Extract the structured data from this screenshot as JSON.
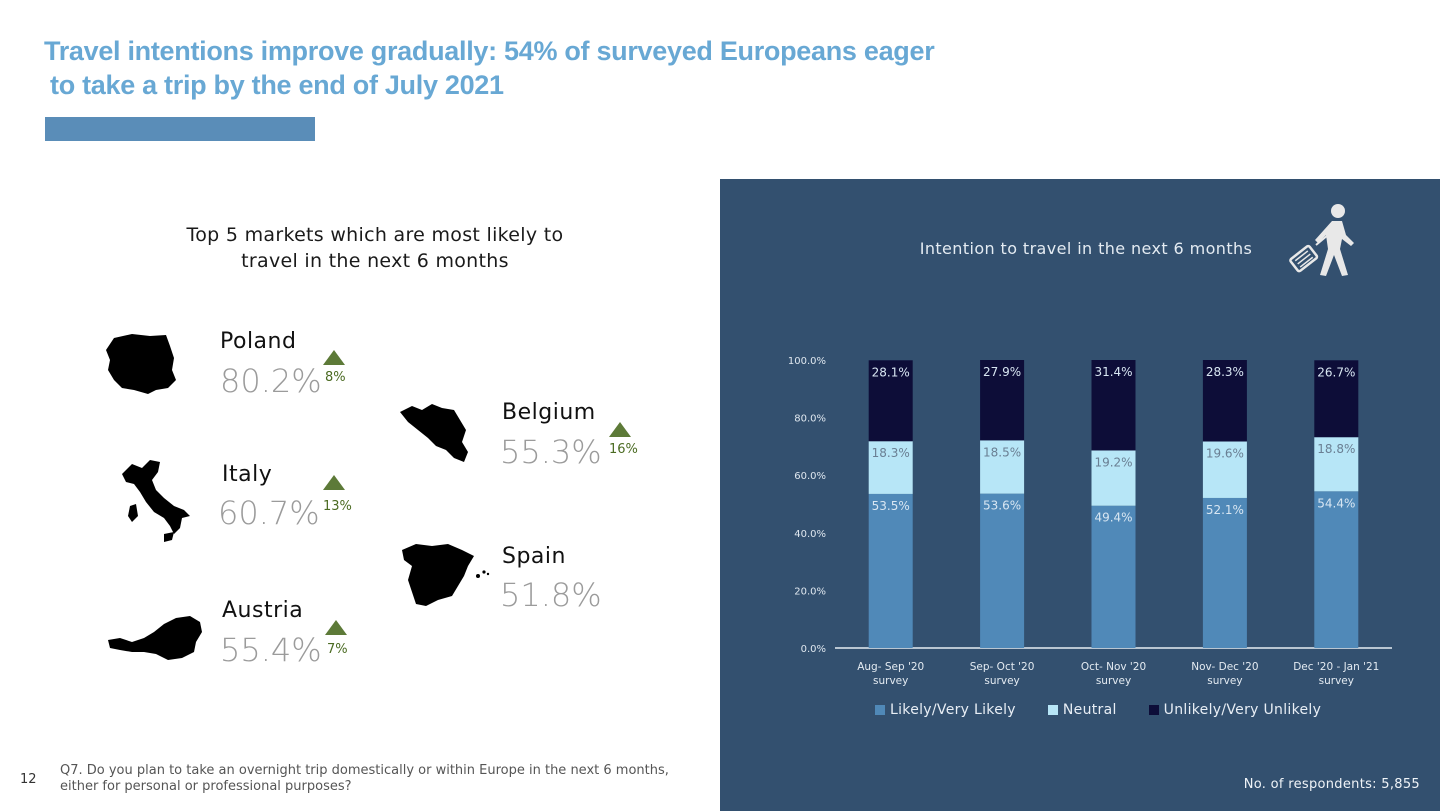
{
  "header": {
    "title_line1": "Travel intentions improve gradually: 54% of surveyed Europeans eager",
    "title_line2": "to take a trip by the end of July 2021",
    "title_color": "#68a8d4",
    "bar_color": "#5a8db8"
  },
  "markets": {
    "title": "Top 5 markets which are most likely to travel in the next 6 months",
    "items": [
      {
        "name": "Poland",
        "value": "80.2%",
        "change": "8%",
        "trend": "up"
      },
      {
        "name": "Italy",
        "value": "60.7%",
        "change": "13%",
        "trend": "up"
      },
      {
        "name": "Austria",
        "value": "55.4%",
        "change": "7%",
        "trend": "up"
      },
      {
        "name": "Belgium",
        "value": "55.3%",
        "change": "16%",
        "trend": "up"
      },
      {
        "name": "Spain",
        "value": "51.8%",
        "change": "",
        "trend": ""
      }
    ],
    "trend_color": "#5d7a38"
  },
  "footer": {
    "page_number": "12",
    "question": "Q7. Do you plan to take an overnight trip domestically or within Europe in the next 6 months, either for personal or professional purposes?",
    "respondents": "No. of respondents: 5,855"
  },
  "chart_data": {
    "type": "bar",
    "stacked": true,
    "title": "Intention to travel in the next 6 months",
    "categories": [
      [
        "Aug- Sep '20",
        "survey"
      ],
      [
        "Sep- Oct '20",
        "survey"
      ],
      [
        "Oct- Nov '20",
        "survey"
      ],
      [
        "Nov- Dec '20",
        "survey"
      ],
      [
        "Dec '20 - Jan '21",
        "survey"
      ]
    ],
    "series": [
      {
        "name": "Likely/Very Likely",
        "values": [
          53.5,
          53.6,
          49.4,
          52.1,
          54.4
        ],
        "labels": [
          "53.5%",
          "53.6%",
          "49.4%",
          "52.1%",
          "54.4%"
        ],
        "color": "#5089b8"
      },
      {
        "name": "Neutral",
        "values": [
          18.3,
          18.5,
          19.2,
          19.6,
          18.8
        ],
        "labels": [
          "18.3%",
          "18.5%",
          "19.2%",
          "19.6%",
          "18.8%"
        ],
        "color": "#b7e6f7"
      },
      {
        "name": "Unlikely/Very Unlikely",
        "values": [
          28.1,
          27.9,
          31.4,
          28.3,
          26.7
        ],
        "labels": [
          "28.1%",
          "27.9%",
          "31.4%",
          "28.3%",
          "26.7%"
        ],
        "color": "#0d0d38"
      }
    ],
    "ylim": [
      0,
      100
    ],
    "yticks": [
      "0.0%",
      "20.0%",
      "40.0%",
      "60.0%",
      "80.0%",
      "100.0%"
    ],
    "ytick_values": [
      0,
      20,
      40,
      60,
      80,
      100
    ],
    "grid": false,
    "legend_position": "bottom",
    "background": "#33506f"
  }
}
